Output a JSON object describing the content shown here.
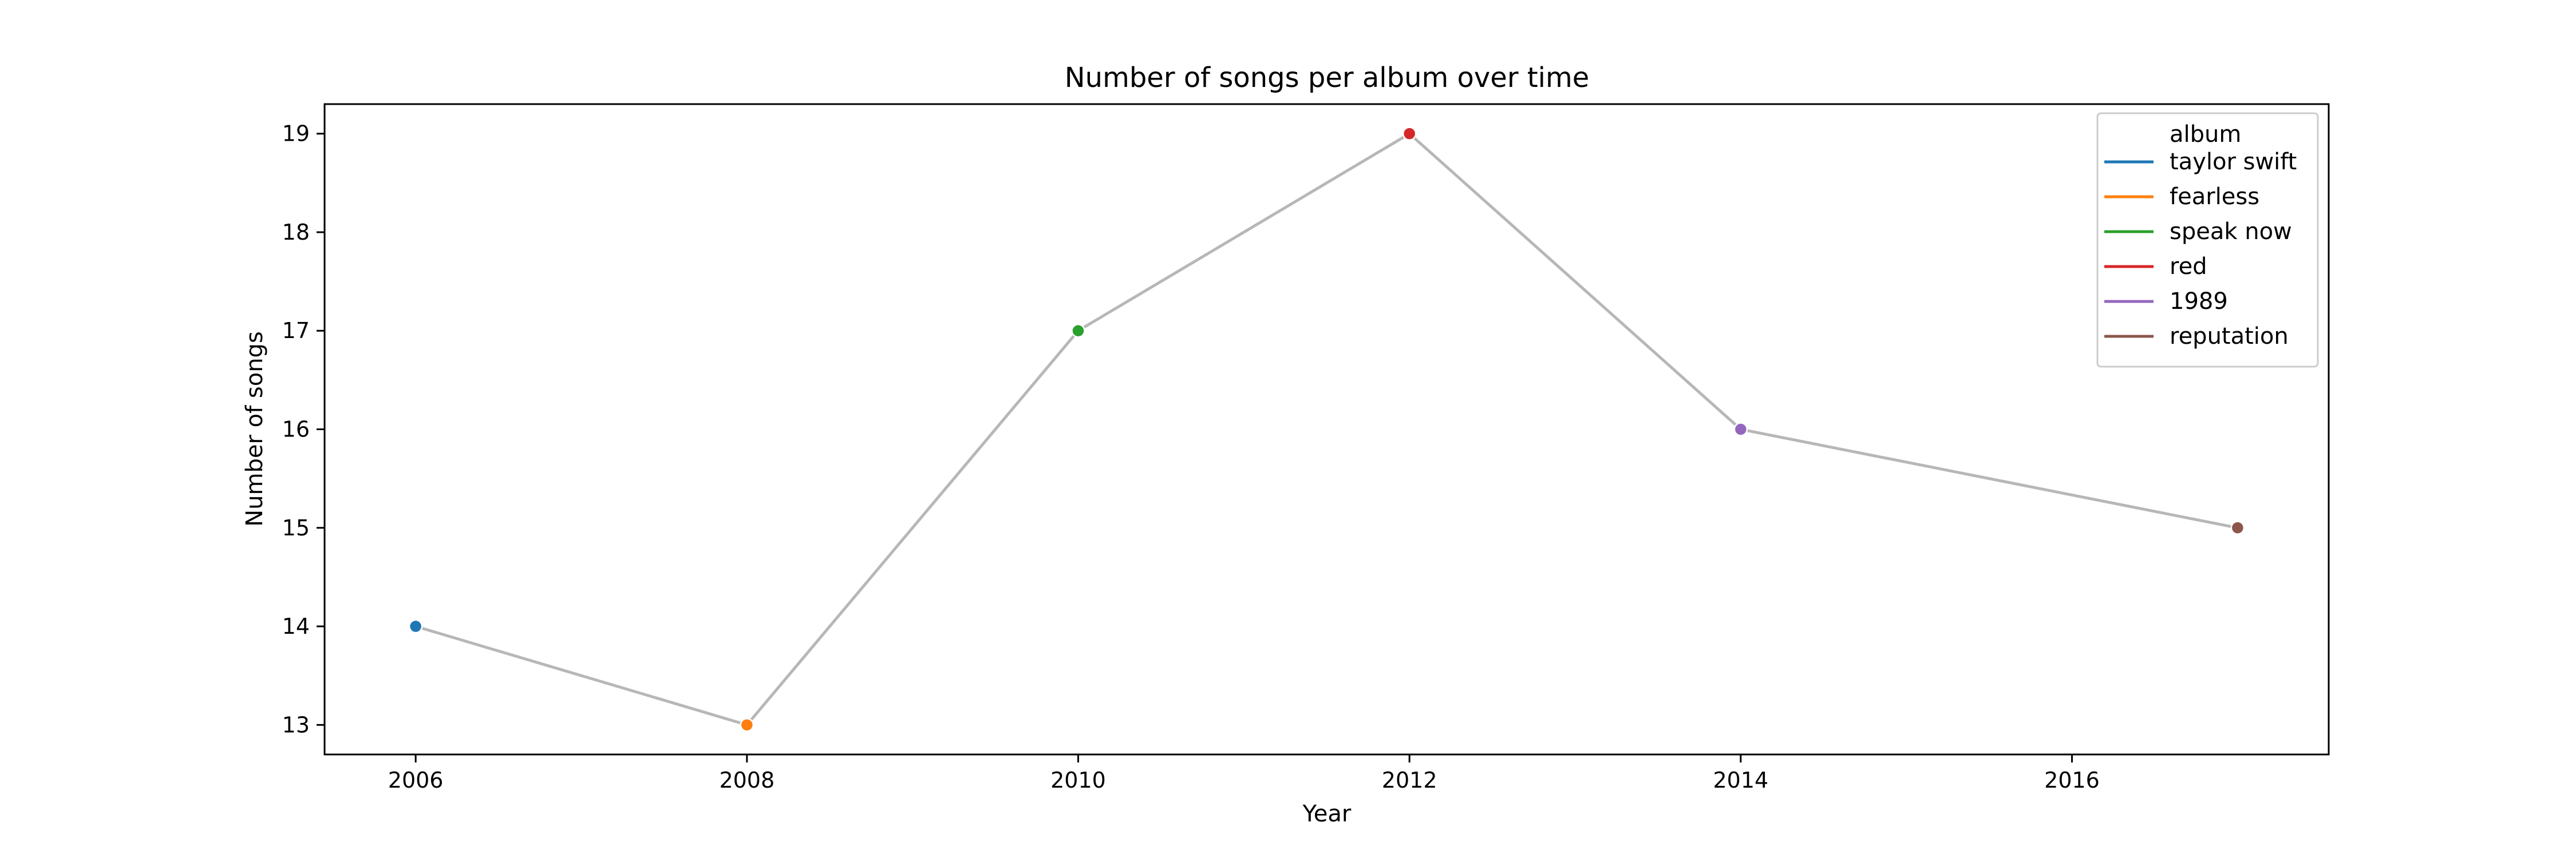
{
  "chart_data": {
    "type": "line",
    "title": "Number of songs per album over time",
    "xlabel": "Year",
    "ylabel": "Number of songs",
    "xlim": [
      2005.45,
      2017.55
    ],
    "ylim": [
      12.7,
      19.3
    ],
    "xticks": [
      2006,
      2008,
      2010,
      2012,
      2014,
      2016
    ],
    "yticks": [
      13,
      14,
      15,
      16,
      17,
      18,
      19
    ],
    "line_color": "#b7b7b7",
    "legend": {
      "title": "album",
      "placement": "upper-right"
    },
    "points": [
      {
        "album": "taylor swift",
        "x": 2006,
        "y": 14,
        "color": "#1f77b4"
      },
      {
        "album": "fearless",
        "x": 2008,
        "y": 13,
        "color": "#ff7f0e"
      },
      {
        "album": "speak now",
        "x": 2010,
        "y": 17,
        "color": "#2ca02c"
      },
      {
        "album": "red",
        "x": 2012,
        "y": 19,
        "color": "#d62728"
      },
      {
        "album": "1989",
        "x": 2014,
        "y": 16,
        "color": "#9467bd"
      },
      {
        "album": "reputation",
        "x": 2017,
        "y": 15,
        "color": "#8c564b"
      }
    ],
    "grid": false
  }
}
